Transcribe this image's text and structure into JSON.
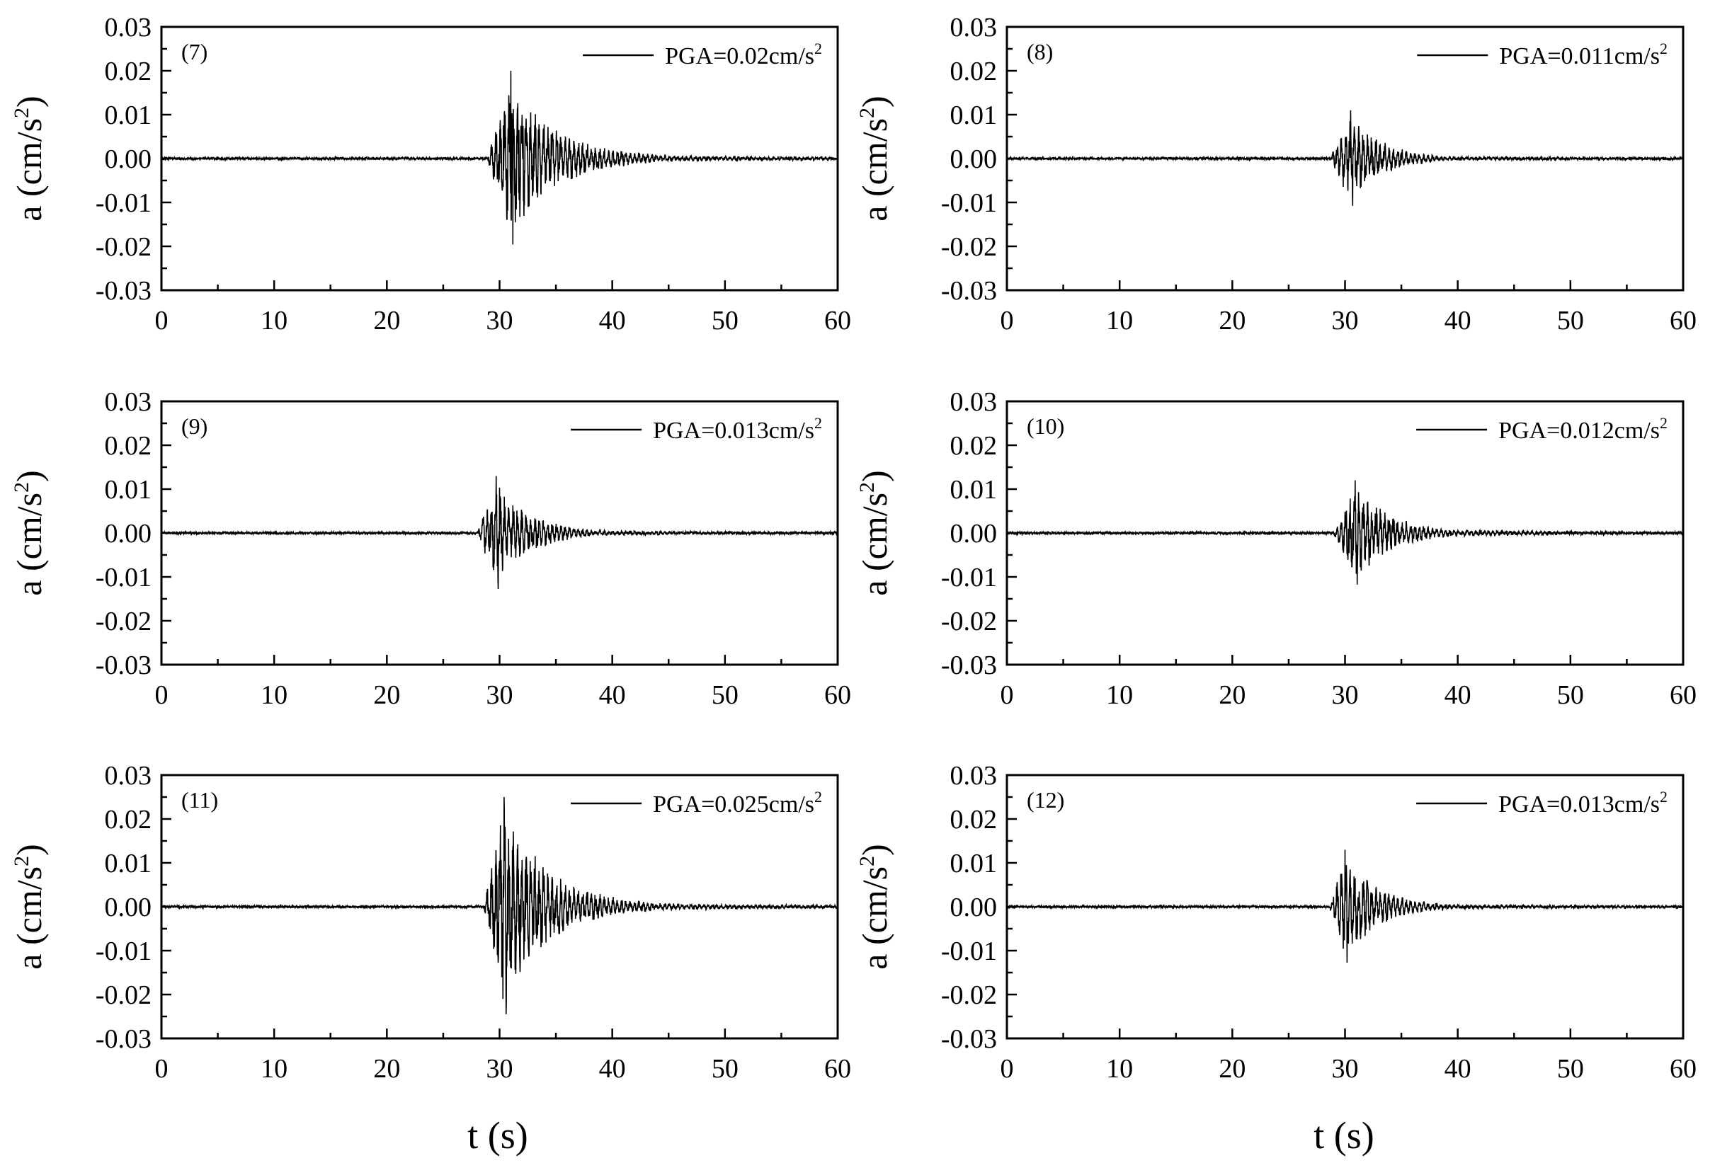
{
  "chart_data": {
    "type": "line",
    "layout": "3 rows x 2 columns of panels",
    "xlim": [
      0,
      60
    ],
    "ylim": [
      -0.03,
      0.03
    ],
    "x_ticks": [
      "0",
      "10",
      "20",
      "30",
      "40",
      "50",
      "60"
    ],
    "y_ticks": [
      "0.03",
      "0.02",
      "0.01",
      "0.00",
      "-0.01",
      "-0.02",
      "-0.03"
    ],
    "ylabel": "a (cm/s",
    "ylabel_sup": "2",
    "ylabel_close": ")",
    "xlabel": "t (s)",
    "grid": false,
    "legend_position": "top-right",
    "panels": [
      {
        "id": "(7)",
        "legend_label": "PGA=0.02cm/s",
        "legend_sup": "2",
        "pga": 0.02,
        "onset": 28.9,
        "peak_time": 31.0,
        "coda_decay": 4.2,
        "coda_level": 0.0015
      },
      {
        "id": "(8)",
        "legend_label": "PGA=0.011cm/s",
        "legend_sup": "2",
        "pga": 0.011,
        "onset": 28.6,
        "peak_time": 30.5,
        "coda_decay": 2.8,
        "coda_level": 0.0006
      },
      {
        "id": "(9)",
        "legend_label": "PGA=0.013cm/s",
        "legend_sup": "2",
        "pga": 0.013,
        "onset": 28.0,
        "peak_time": 29.7,
        "coda_decay": 3.0,
        "coda_level": 0.0008
      },
      {
        "id": "(10)",
        "legend_label": "PGA=0.012cm/s",
        "legend_sup": "2",
        "pga": 0.012,
        "onset": 28.9,
        "peak_time": 30.9,
        "coda_decay": 3.2,
        "coda_level": 0.0012
      },
      {
        "id": "(11)",
        "legend_label": "PGA=0.025cm/s",
        "legend_sup": "2",
        "pga": 0.025,
        "onset": 28.6,
        "peak_time": 30.4,
        "coda_decay": 4.0,
        "coda_level": 0.0018
      },
      {
        "id": "(12)",
        "legend_label": "PGA=0.013cm/s",
        "legend_sup": "2",
        "pga": 0.013,
        "onset": 28.6,
        "peak_time": 30.0,
        "coda_decay": 3.0,
        "coda_level": 0.0008
      }
    ]
  }
}
